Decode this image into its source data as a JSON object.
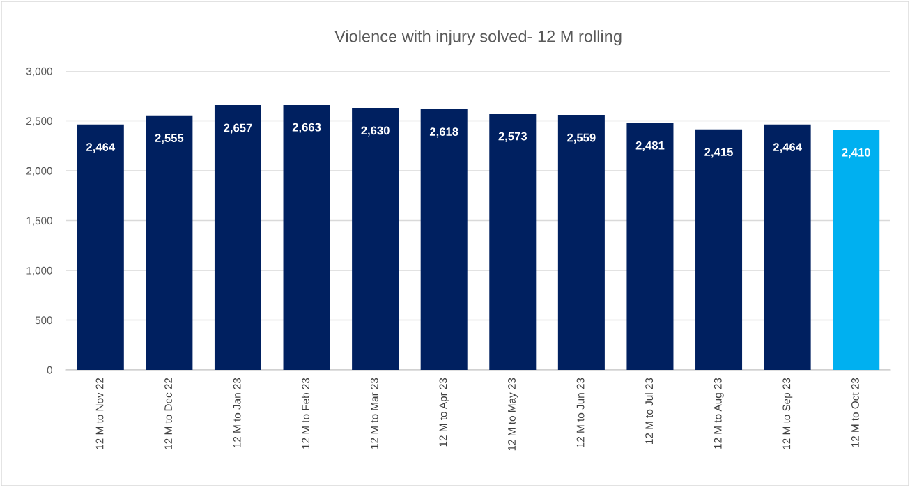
{
  "chart_data": {
    "type": "bar",
    "title": "Violence with injury solved- 12 M rolling",
    "categories": [
      "12 M to Nov 22",
      "12 M to Dec 22",
      "12 M to Jan 23",
      "12 M to Feb 23",
      "12 M to Mar 23",
      "12 M to Apr 23",
      "12 M to May 23",
      "12 M to Jun 23",
      "12 M to Jul 23",
      "12 M to Aug 23",
      "12 M to Sep 23",
      "12 M to Oct 23"
    ],
    "values": [
      2464,
      2555,
      2657,
      2663,
      2630,
      2618,
      2573,
      2559,
      2481,
      2415,
      2464,
      2410
    ],
    "value_labels": [
      "2,464",
      "2,555",
      "2,657",
      "2,663",
      "2,630",
      "2,618",
      "2,573",
      "2,559",
      "2,481",
      "2,415",
      "2,464",
      "2,410"
    ],
    "colors": [
      "#002060",
      "#002060",
      "#002060",
      "#002060",
      "#002060",
      "#002060",
      "#002060",
      "#002060",
      "#002060",
      "#002060",
      "#002060",
      "#00b0f0"
    ],
    "ylim": [
      0,
      3000
    ],
    "yticks": [
      0,
      500,
      {
        "value": 1000,
        "label": "1,000"
      },
      {
        "value": 1500,
        "label": "1,500"
      },
      {
        "value": 2000,
        "label": "2,000"
      },
      {
        "value": 2500,
        "label": "2,500"
      },
      {
        "value": 3000,
        "label": "3,000"
      }
    ],
    "grid": "y"
  }
}
